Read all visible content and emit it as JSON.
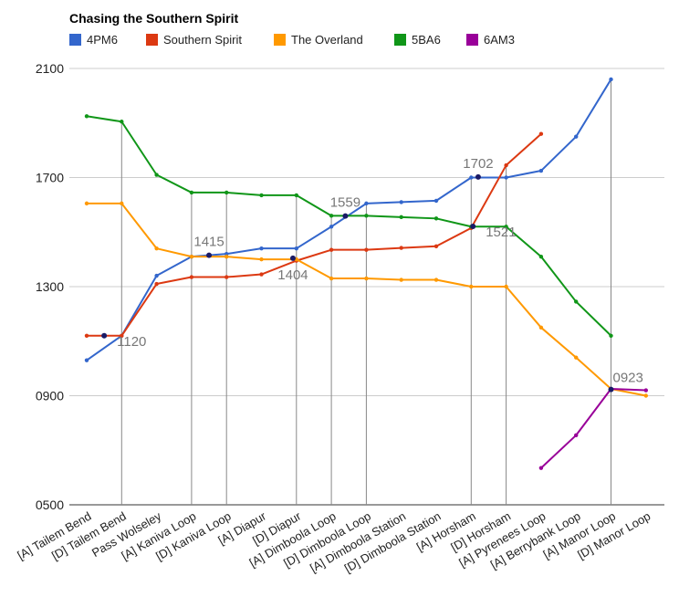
{
  "chart_data": {
    "type": "line",
    "title": "Chasing the Southern Spirit",
    "xlabel": "",
    "ylabel": "",
    "ylim": [
      500,
      2100
    ],
    "yticks": [
      "0500",
      "0900",
      "1300",
      "1700",
      "2100"
    ],
    "grid": true,
    "legend_position": "top",
    "categories": [
      "[A] Tailem Bend",
      "[D] Tailem Bend",
      "Pass Wolseley",
      "[A] Kaniva Loop",
      "[D] Kaniva Loop",
      "[A] Diapur",
      "[D] Diapur",
      "[A] Dimboola Loop",
      "[D] Dimboola Loop",
      "[A] Dimboola Station",
      "[D] Dimboola Station",
      "[A] Horsham",
      "[D] Horsham",
      "[A] Pyrenees Loop",
      "[A] Berrybank Loop",
      "[A] Manor Loop",
      "[D] Manor Loop"
    ],
    "series": [
      {
        "name": "4PM6",
        "color": "#3366cc",
        "values": [
          1030,
          1120,
          1340,
          1410,
          1420,
          1440,
          1440,
          1520,
          1605,
          1610,
          1615,
          1700,
          1700,
          1725,
          1850,
          2060,
          null
        ]
      },
      {
        "name": "Southern Spirit",
        "color": "#dc3912",
        "values": [
          1120,
          1120,
          1310,
          1335,
          1335,
          1345,
          1395,
          1435,
          1435,
          1442,
          1448,
          1515,
          1745,
          1860,
          null,
          null,
          null
        ]
      },
      {
        "name": "The Overland",
        "color": "#ff9900",
        "values": [
          1605,
          1605,
          1440,
          1410,
          1410,
          1400,
          1400,
          1330,
          1330,
          1325,
          1325,
          1300,
          1300,
          1150,
          1040,
          925,
          900
        ]
      },
      {
        "name": "5BA6",
        "color": "#109618",
        "values": [
          1925,
          1905,
          1710,
          1645,
          1645,
          1635,
          1635,
          1560,
          1560,
          1555,
          1550,
          1520,
          1520,
          1410,
          1245,
          1120,
          null
        ]
      },
      {
        "name": "6AM3",
        "color": "#990099",
        "values": [
          null,
          null,
          null,
          null,
          null,
          null,
          null,
          null,
          null,
          null,
          null,
          null,
          null,
          635,
          755,
          925,
          920
        ]
      }
    ],
    "annotations": [
      {
        "text": "1120",
        "x": 0.5,
        "y": 1120,
        "placement": "below-right"
      },
      {
        "text": "1415",
        "x": 3.5,
        "y": 1415,
        "placement": "above"
      },
      {
        "text": "1404",
        "x": 5.9,
        "y": 1404,
        "placement": "below"
      },
      {
        "text": "1559",
        "x": 7.4,
        "y": 1559,
        "placement": "above"
      },
      {
        "text": "1702",
        "x": 11.2,
        "y": 1702,
        "placement": "above"
      },
      {
        "text": "1521",
        "x": 11.05,
        "y": 1521,
        "placement": "below-right"
      },
      {
        "text": "0923",
        "x": 15.0,
        "y": 923,
        "placement": "above-right"
      }
    ],
    "dropline_categories": [
      1,
      3,
      4,
      6,
      7,
      8,
      11,
      12,
      15
    ]
  }
}
